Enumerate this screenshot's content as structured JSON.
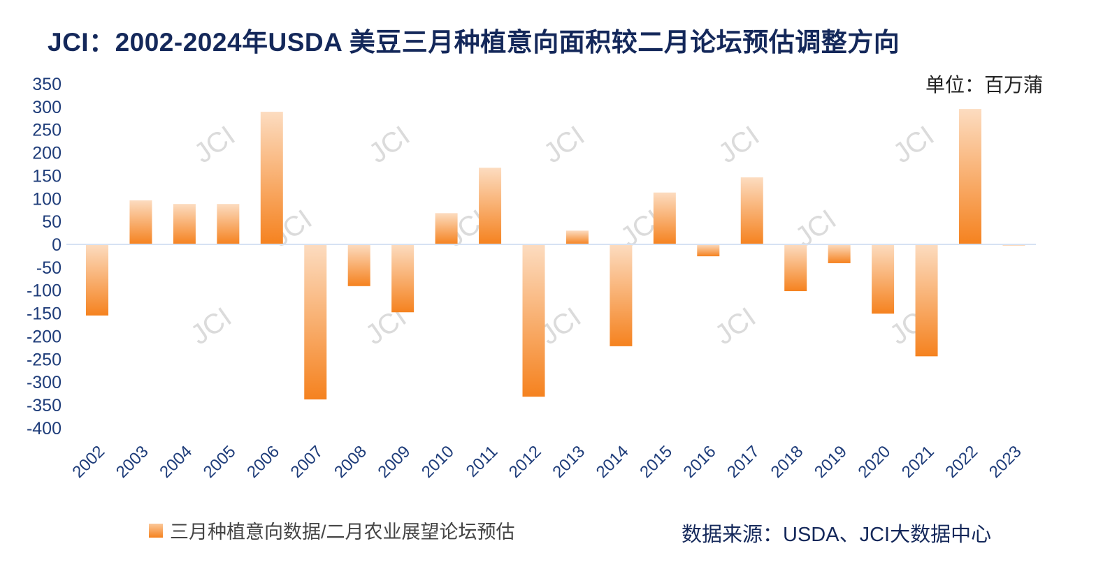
{
  "title": "JCI：2002-2024年USDA 美豆三月种植意向面积较二月论坛预估调整方向",
  "unit": "单位：百万蒲",
  "source": "数据来源：USDA、JCI大数据中心",
  "watermark": "JCI",
  "colors": {
    "bar_dark": "#f5821f",
    "bar_light": "#fcdcc0",
    "axis": "#d6e2f3",
    "tick_text": "#1f3d7a",
    "title": "#14285a"
  },
  "chart_data": {
    "type": "bar",
    "title": "JCI：2002-2024年USDA 美豆三月种植意向面积较二月论坛预估调整方向",
    "xlabel": "",
    "ylabel": "单位：百万蒲",
    "ylim": [
      -400,
      350
    ],
    "yticks": [
      350,
      300,
      250,
      200,
      150,
      100,
      50,
      0,
      -50,
      -100,
      -150,
      -200,
      -250,
      -300,
      -350,
      -400
    ],
    "categories": [
      "2002",
      "2003",
      "2004",
      "2005",
      "2006",
      "2007",
      "2008",
      "2009",
      "2010",
      "2011",
      "2012",
      "2013",
      "2014",
      "2015",
      "2016",
      "2017",
      "2018",
      "2019",
      "2020",
      "2021",
      "2022",
      "2023"
    ],
    "series": [
      {
        "name": "三月种植意向数据/二月农业展望论坛预估",
        "values": [
          -155,
          96,
          88,
          88,
          289,
          -338,
          -91,
          -148,
          68,
          167,
          -332,
          30,
          -222,
          113,
          -26,
          146,
          -102,
          -41,
          -151,
          -244,
          295,
          -2
        ]
      }
    ],
    "legend": "bottom-left",
    "grid": false
  }
}
